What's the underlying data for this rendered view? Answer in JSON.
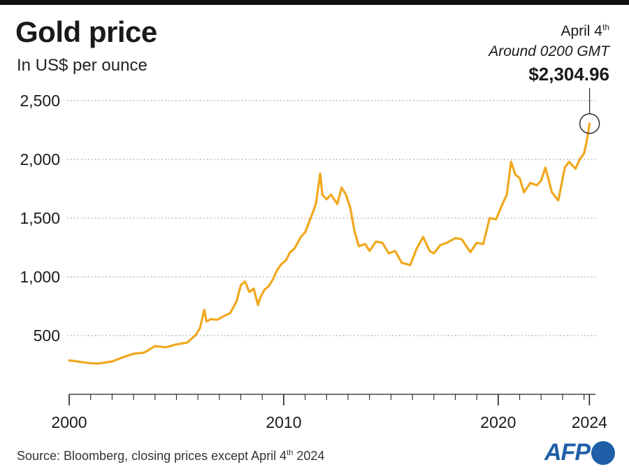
{
  "header": {
    "title": "Gold price",
    "subtitle": "In US$ per ounce"
  },
  "annotation": {
    "date_main": "April 4",
    "date_suffix": "th",
    "time": "Around 0200 GMT",
    "value_label": "$2,304.96"
  },
  "footer": {
    "source_main": "Source: Bloomberg, closing prices except April 4",
    "source_suffix": "th",
    "source_year": " 2024",
    "logo": "AFP"
  },
  "colors": {
    "line": "#F0A81E",
    "grid": "#9a9a9a",
    "text": "#1a1a1a",
    "brand": "#1e5fa8"
  },
  "chart_data": {
    "type": "line",
    "title": "Gold price",
    "ylabel": "In US$ per ounce",
    "xlabel": "",
    "xlim": [
      2000,
      2024.5
    ],
    "ylim": [
      0,
      2500
    ],
    "yticks": [
      500,
      1000,
      1500,
      2000,
      2500
    ],
    "ytick_labels": [
      "500",
      "1,000",
      "1,500",
      "2,000",
      "2,500"
    ],
    "xtick_labels": [
      {
        "x": 2000,
        "label": "2000"
      },
      {
        "x": 2010,
        "label": "2010"
      },
      {
        "x": 2020,
        "label": "2020"
      },
      {
        "x": 2024.25,
        "label": "2024"
      }
    ],
    "minor_xticks": [
      2000,
      2001,
      2002,
      2003,
      2004,
      2005,
      2006,
      2007,
      2008,
      2009,
      2010,
      2011,
      2012,
      2013,
      2014,
      2015,
      2016,
      2017,
      2018,
      2019,
      2020,
      2021,
      2022,
      2023,
      2024
    ],
    "grid": "horizontal-dotted",
    "series": [
      {
        "name": "Gold price",
        "x": [
          2000.0,
          2000.3,
          2000.6,
          2001.0,
          2001.3,
          2001.6,
          2002.0,
          2002.5,
          2003.0,
          2003.5,
          2004.0,
          2004.5,
          2005.0,
          2005.5,
          2005.9,
          2006.1,
          2006.3,
          2006.4,
          2006.6,
          2006.9,
          2007.2,
          2007.5,
          2007.8,
          2008.0,
          2008.2,
          2008.4,
          2008.6,
          2008.8,
          2008.9,
          2009.1,
          2009.3,
          2009.5,
          2009.7,
          2009.9,
          2010.1,
          2010.3,
          2010.5,
          2010.8,
          2011.0,
          2011.3,
          2011.5,
          2011.7,
          2011.8,
          2012.0,
          2012.2,
          2012.5,
          2012.7,
          2012.9,
          2013.1,
          2013.3,
          2013.5,
          2013.8,
          2014.0,
          2014.3,
          2014.6,
          2014.9,
          2015.2,
          2015.5,
          2015.9,
          2016.2,
          2016.5,
          2016.8,
          2017.0,
          2017.3,
          2017.6,
          2018.0,
          2018.3,
          2018.7,
          2019.0,
          2019.3,
          2019.6,
          2019.9,
          2020.2,
          2020.4,
          2020.6,
          2020.8,
          2021.0,
          2021.2,
          2021.5,
          2021.8,
          2022.0,
          2022.2,
          2022.5,
          2022.8,
          2022.9,
          2023.1,
          2023.3,
          2023.6,
          2023.8,
          2024.0,
          2024.15,
          2024.26
        ],
        "values": [
          288,
          282,
          273,
          265,
          262,
          268,
          280,
          315,
          345,
          355,
          410,
          400,
          425,
          440,
          505,
          565,
          720,
          620,
          640,
          635,
          665,
          690,
          790,
          930,
          960,
          870,
          900,
          760,
          820,
          890,
          920,
          980,
          1060,
          1110,
          1140,
          1210,
          1240,
          1340,
          1380,
          1520,
          1620,
          1880,
          1700,
          1660,
          1700,
          1620,
          1760,
          1700,
          1590,
          1390,
          1260,
          1280,
          1220,
          1300,
          1290,
          1200,
          1220,
          1120,
          1100,
          1240,
          1340,
          1220,
          1200,
          1270,
          1290,
          1330,
          1320,
          1210,
          1290,
          1280,
          1500,
          1490,
          1620,
          1700,
          1980,
          1870,
          1840,
          1720,
          1800,
          1780,
          1820,
          1930,
          1720,
          1650,
          1740,
          1930,
          1980,
          1920,
          2000,
          2050,
          2180,
          2305
        ]
      }
    ],
    "annotation": {
      "x": 2024.26,
      "y": 2304.96,
      "label": "$2,304.96"
    }
  }
}
